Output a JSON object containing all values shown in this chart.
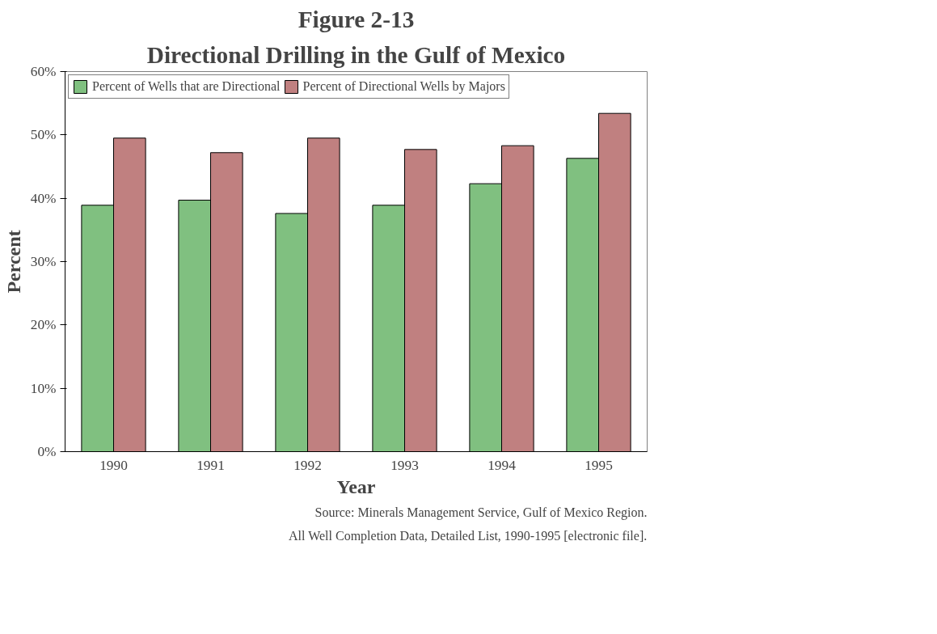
{
  "chart_data": {
    "type": "bar",
    "title": "Figure 2-13",
    "subtitle": "Directional Drilling in the Gulf of Mexico",
    "xlabel": "Year",
    "ylabel": "Percent",
    "categories": [
      "1990",
      "1991",
      "1992",
      "1993",
      "1994",
      "1995"
    ],
    "series": [
      {
        "name": "Percent of Wells that are Directional",
        "color": "#80c080",
        "values": [
          38.9,
          39.7,
          37.6,
          38.9,
          42.3,
          46.3
        ]
      },
      {
        "name": "Percent of Directional Wells by Majors",
        "color": "#c08080",
        "values": [
          49.5,
          47.2,
          49.5,
          47.7,
          48.3,
          53.4
        ]
      }
    ],
    "ylim": [
      0,
      60
    ],
    "yticks": [
      {
        "value": 0,
        "label": "0%"
      },
      {
        "value": 10,
        "label": "10%"
      },
      {
        "value": 20,
        "label": "20%"
      },
      {
        "value": 30,
        "label": "30%"
      },
      {
        "value": 40,
        "label": "40%"
      },
      {
        "value": 50,
        "label": "50%"
      },
      {
        "value": 60,
        "label": "60%"
      }
    ],
    "grid": false,
    "legend": "top left",
    "annotations": [
      "Source: Minerals Management Service, Gulf of Mexico Region.",
      "All Well Completion Data, Detailed List, 1990-1995 [electronic file]."
    ]
  }
}
